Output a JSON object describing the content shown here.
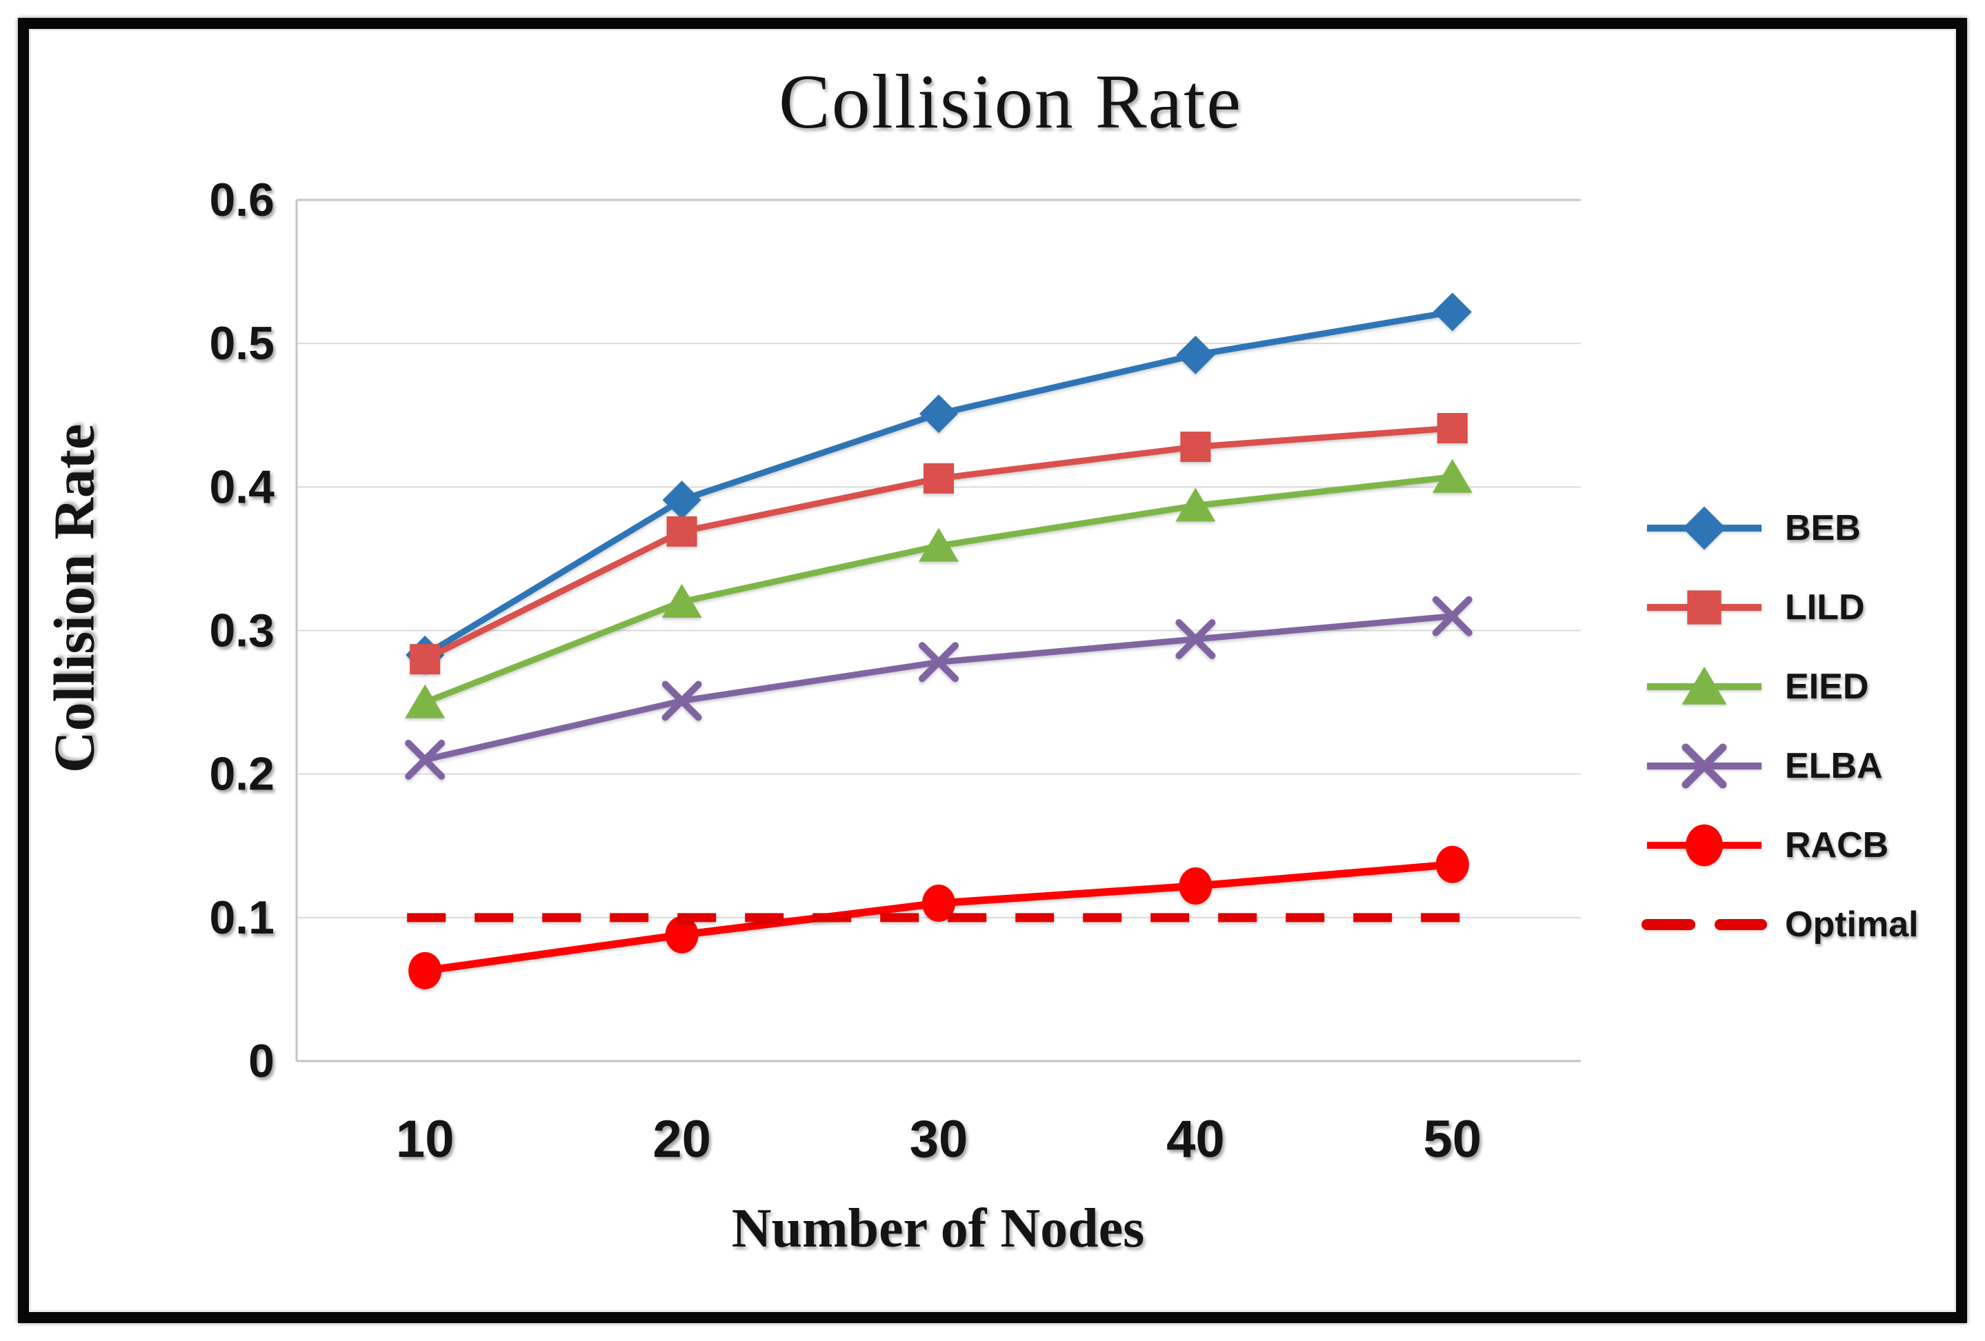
{
  "frame": {
    "background": "#ffffff",
    "border_color": "#060606",
    "inner_hairline_color": "#ededed"
  },
  "chart_data": {
    "type": "line",
    "title": "Collision Rate",
    "xlabel": "Number of Nodes",
    "ylabel": "Collision Rate",
    "categories": [
      10,
      20,
      30,
      40,
      50
    ],
    "x_tick_labels": [
      "10",
      "20",
      "30",
      "40",
      "50"
    ],
    "y_tick_labels": [
      "0",
      "0.1",
      "0.2",
      "0.3",
      "0.4",
      "0.5",
      "0.6"
    ],
    "ylim": [
      0,
      0.6
    ],
    "y_gridline_step": 0.1,
    "grid": "horizontal",
    "gridline_color": "#DADADA",
    "axis_line_color": "#C4C4C4",
    "legend_position": "right",
    "series": [
      {
        "name": "BEB",
        "color": "#2E75B6",
        "marker": "diamond",
        "line": "solid",
        "values": [
          0.283,
          0.391,
          0.451,
          0.492,
          0.522
        ]
      },
      {
        "name": "LILD",
        "color": "#D9504C",
        "marker": "square",
        "line": "solid",
        "values": [
          0.28,
          0.369,
          0.406,
          0.428,
          0.441
        ]
      },
      {
        "name": "EIED",
        "color": "#7DB646",
        "marker": "triangle",
        "line": "solid",
        "values": [
          0.25,
          0.32,
          0.359,
          0.387,
          0.407
        ]
      },
      {
        "name": "ELBA",
        "color": "#8064A2",
        "marker": "x",
        "line": "solid",
        "values": [
          0.21,
          0.251,
          0.278,
          0.294,
          0.31
        ]
      },
      {
        "name": "RACB",
        "color": "#FE0000",
        "marker": "circle",
        "line": "solid",
        "values": [
          0.063,
          0.088,
          0.11,
          0.122,
          0.137
        ]
      },
      {
        "name": "Optimal",
        "color": "#E10000",
        "marker": "none",
        "line": "dashed",
        "values": [
          0.1,
          0.1,
          0.1,
          0.1,
          0.1
        ]
      }
    ]
  }
}
